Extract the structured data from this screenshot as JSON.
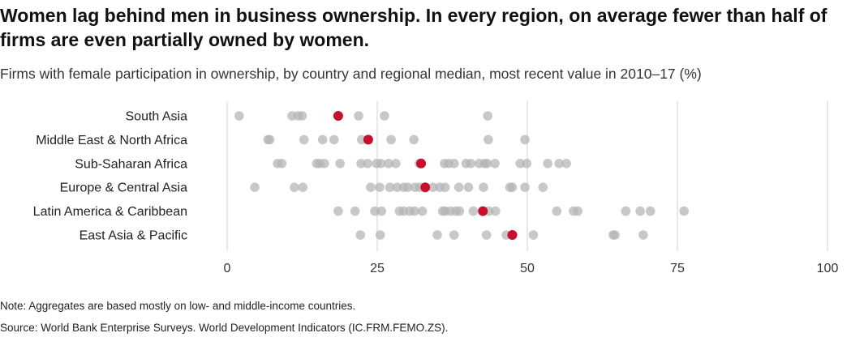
{
  "header": {
    "title": "Women lag behind men in business ownership. In every region, on average fewer than half of firms are even partially owned by women.",
    "subtitle": "Firms with female participation in ownership, by country and regional median, most recent value in 2010–17 (%)"
  },
  "footer": {
    "note": "Note: Aggregates are based mostly on low- and middle-income countries.",
    "source": "Source: World Bank Enterprise Surveys. World Development Indicators (IC.FRM.FEMO.ZS)."
  },
  "colors": {
    "country_dot": "#b3b3b3",
    "median_dot": "#c8102e",
    "gridline": "#d9d9d9"
  },
  "chart_data": {
    "type": "scatter",
    "title": "Women lag behind men in business ownership. In every region, on average fewer than half of firms are even partially owned by women.",
    "subtitle": "Firms with female participation in ownership, by country and regional median, most recent value in 2010–17 (%)",
    "xlabel": "",
    "ylabel": "",
    "xlim": [
      0,
      100
    ],
    "xticks": [
      0,
      25,
      50,
      75,
      100
    ],
    "grid": "vertical",
    "legend": "none",
    "categories": [
      "South Asia",
      "Middle East & North Africa",
      "Sub-Saharan Africa",
      "Europe & Central Asia",
      "Latin America & Caribbean",
      "East Asia & Pacific"
    ],
    "series": [
      {
        "region": "South Asia",
        "median": 18.5,
        "countries": [
          2,
          10.8,
          11.8,
          12.5,
          18.5,
          21.9,
          26.2,
          43.4
        ]
      },
      {
        "region": "Middle East & North Africa",
        "median": 23.5,
        "countries": [
          6.8,
          7.1,
          12.8,
          15.9,
          17.8,
          22.4,
          23.5,
          27.3,
          31.1,
          43.5,
          49.6
        ]
      },
      {
        "region": "Sub-Saharan Africa",
        "median": 32.3,
        "countries": [
          8.4,
          9.1,
          14.9,
          15.4,
          16.2,
          18.8,
          22.3,
          23.4,
          24.9,
          25.6,
          26.9,
          28.1,
          32.0,
          32.3,
          36.2,
          36.9,
          37.8,
          39.8,
          40.6,
          42.0,
          42.9,
          43.3,
          44.6,
          48.8,
          49.9,
          53.4,
          55.3,
          56.5
        ]
      },
      {
        "region": "Europe & Central Asia",
        "median": 33.0,
        "countries": [
          4.6,
          11.2,
          12.6,
          23.9,
          25.4,
          27.1,
          28.3,
          29.4,
          30.1,
          31.3,
          32.1,
          33.0,
          34.3,
          35.4,
          36.3,
          38.6,
          40.2,
          42.7,
          47.1,
          47.5,
          49.6,
          52.6
        ]
      },
      {
        "region": "Latin America & Caribbean",
        "median": 42.6,
        "countries": [
          18.5,
          21.3,
          24.6,
          25.7,
          28.7,
          29.4,
          30.4,
          31.2,
          32.5,
          35.9,
          36.3,
          37.2,
          38.1,
          38.7,
          41.0,
          42.6,
          43.6,
          44.7,
          54.9,
          57.7,
          58.4,
          66.4,
          68.8,
          70.5,
          76.1
        ]
      },
      {
        "region": "East Asia & Pacific",
        "median": 47.5,
        "countries": [
          22.2,
          25.5,
          35.0,
          37.8,
          43.2,
          46.5,
          47.5,
          51.0,
          64.3,
          64.6,
          69.3
        ]
      }
    ]
  }
}
